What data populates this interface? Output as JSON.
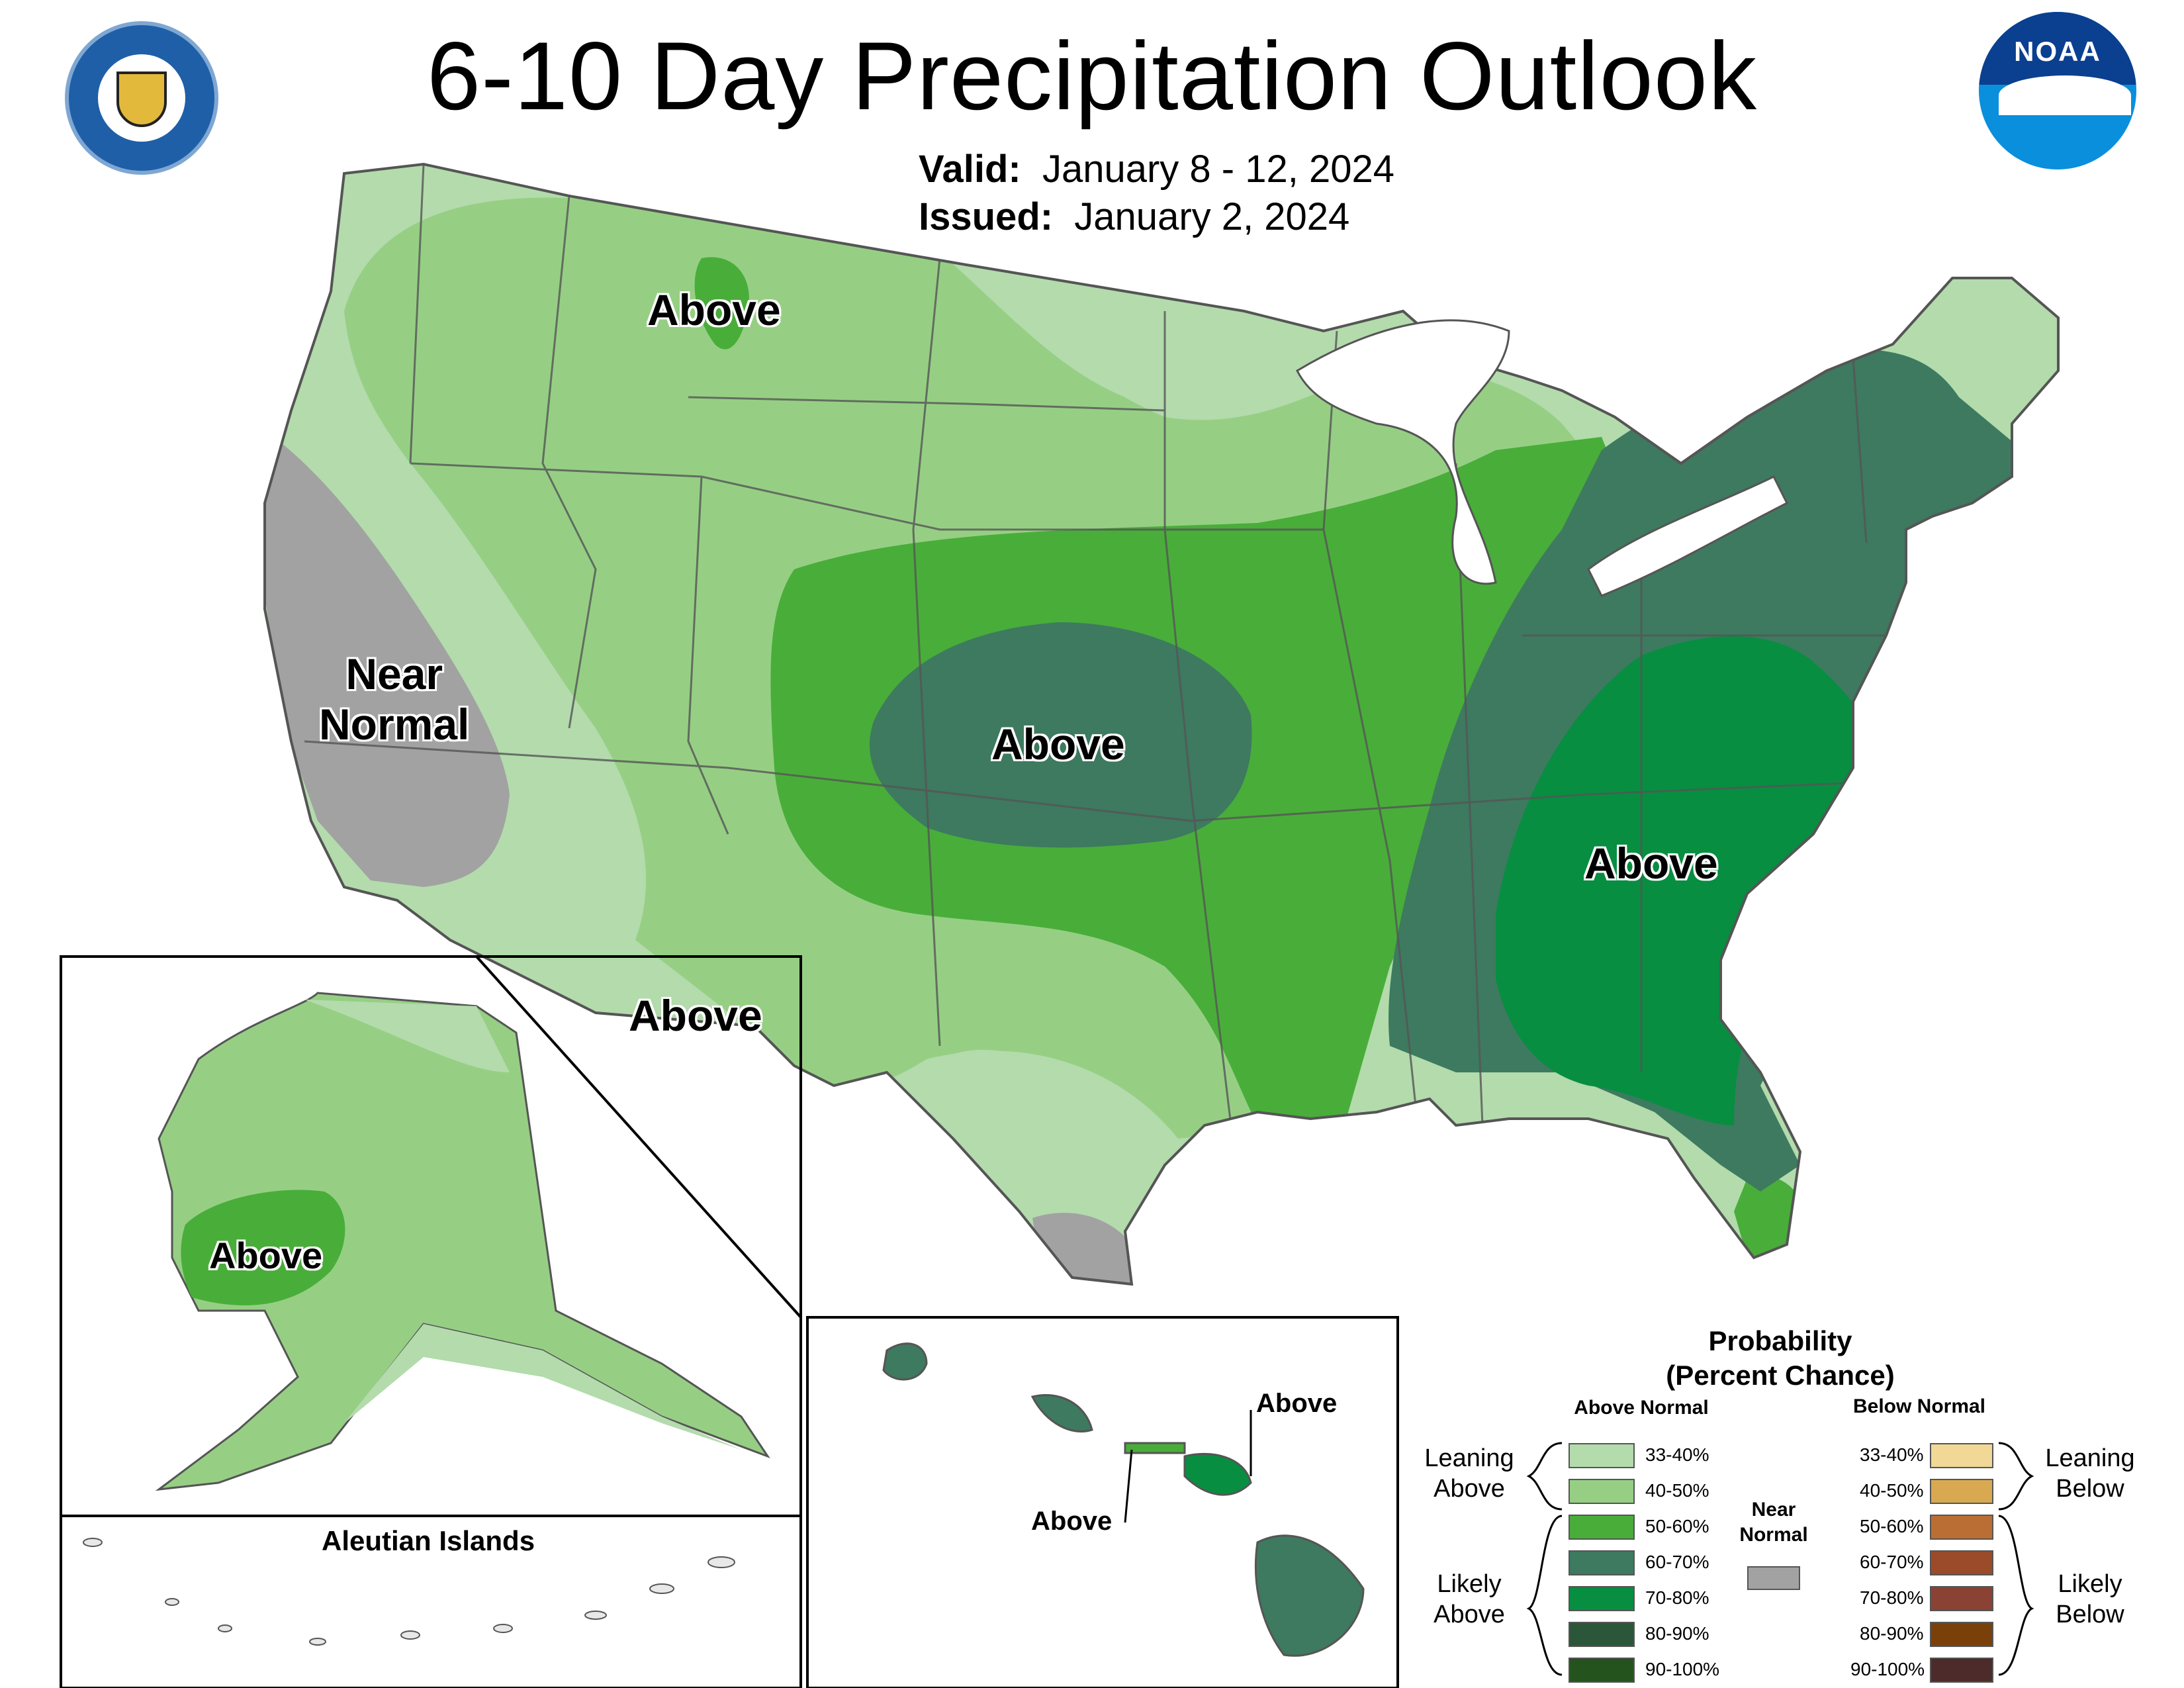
{
  "title": "6-10 Day Precipitation Outlook",
  "valid": {
    "label": "Valid:",
    "value": "January 8 - 12, 2024"
  },
  "issued": {
    "label": "Issued:",
    "value": "January 2, 2024"
  },
  "logos": {
    "left": "department-of-commerce-seal",
    "right": "noaa-logo"
  },
  "map_labels": {
    "montana": "Above",
    "california_line1": "Near",
    "california_line2": "Normal",
    "kansas": "Above",
    "southeast": "Above",
    "southwest": "Above",
    "alaska": "Above",
    "hawaii_kauai_oahu": "Above",
    "hawaii_maui": "Above"
  },
  "insets": {
    "aleutian_title": "Aleutian Islands"
  },
  "categories": {
    "lean_above_33_40": "#b3dbac",
    "lean_above_40_50": "#96cf84",
    "likely_above_50_60": "#49ad3a",
    "likely_above_60_70": "#3d7a60",
    "likely_above_70_80": "#078e41",
    "likely_above_80_90": "#2b563a",
    "likely_above_90_100": "#24531e",
    "near_normal": "#a2a2a2",
    "below_33_40": "#f1d896",
    "below_40_50": "#d8a951",
    "below_50_60": "#bb6e34",
    "below_60_70": "#9b4a2a",
    "below_70_80": "#8a4234",
    "below_80_90": "#7a4009",
    "below_90_100": "#4d2b2a"
  },
  "legend": {
    "title_line1": "Probability",
    "title_line2": "(Percent Chance)",
    "above_header": "Above Normal",
    "below_header": "Below Normal",
    "near_line1": "Near",
    "near_line2": "Normal",
    "leaning_above_1": "Leaning",
    "leaning_above_2": "Above",
    "likely_above_1": "Likely",
    "likely_above_2": "Above",
    "leaning_below_1": "Leaning",
    "leaning_below_2": "Below",
    "likely_below_1": "Likely",
    "likely_below_2": "Below",
    "ranges": [
      "33-40%",
      "40-50%",
      "50-60%",
      "60-70%",
      "70-80%",
      "80-90%",
      "90-100%"
    ]
  }
}
